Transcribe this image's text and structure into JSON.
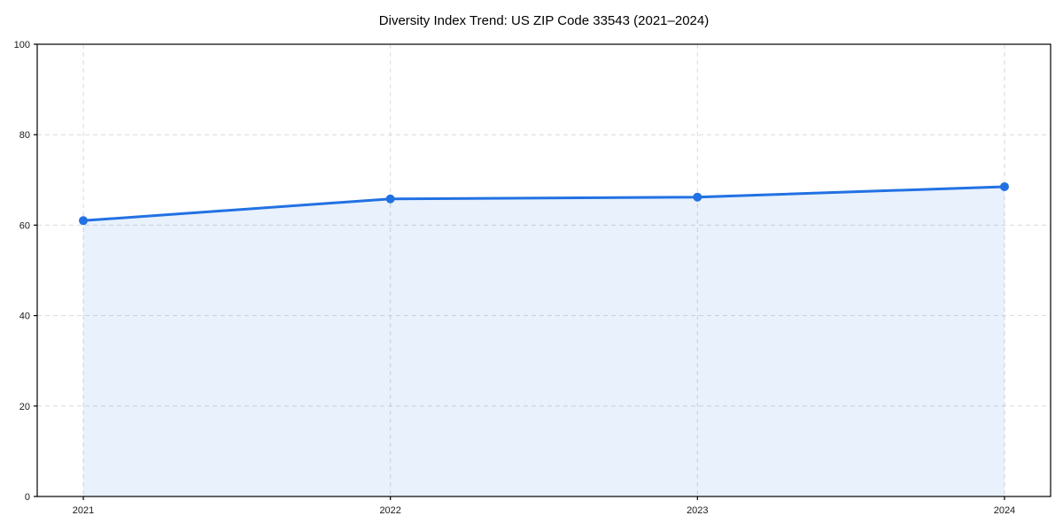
{
  "chart_data": {
    "type": "area",
    "title": "Diversity Index Trend: US ZIP Code 33543 (2021–2024)",
    "x": [
      "2021",
      "2022",
      "2023",
      "2024"
    ],
    "series": [
      {
        "name": "Diversity Index",
        "values": [
          61.0,
          65.8,
          66.2,
          68.5
        ]
      }
    ],
    "xlabel": "",
    "ylabel": "",
    "ylim": [
      0,
      100
    ],
    "yticks": [
      0,
      20,
      40,
      60,
      80,
      100
    ],
    "grid": {
      "show": true,
      "style": "dashed",
      "axes": "both"
    },
    "legend": {
      "show": false
    },
    "colors": {
      "line": "#2271e3",
      "marker": "#2271e3",
      "fill": "rgba(34,113,227,0.10)",
      "grid": "#d9d9d9",
      "axis": "#000000",
      "text": "#1a1a1a"
    }
  }
}
